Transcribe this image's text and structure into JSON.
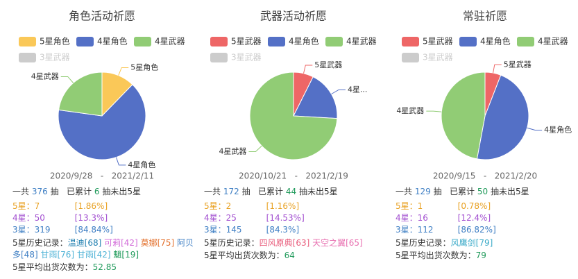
{
  "chart_data": [
    {
      "type": "pie",
      "title": "角色活动祈愿",
      "categories": [
        "5星角色",
        "4星角色",
        "4星武器",
        "3星武器"
      ],
      "values": [
        7,
        37,
        13,
        null
      ],
      "colors": [
        "#fac858",
        "#5470c6",
        "#91cc75",
        "#cccccc"
      ],
      "labels": [
        "5星角色",
        "4星角色",
        "4星武器",
        null
      ]
    },
    {
      "type": "pie",
      "title": "武器活动祈愿",
      "categories": [
        "5星武器",
        "4星角色",
        "4星武器",
        "3星武器"
      ],
      "values": [
        2,
        5,
        20,
        null
      ],
      "colors": [
        "#ee6666",
        "#5470c6",
        "#91cc75",
        "#cccccc"
      ],
      "labels": [
        "5星武器",
        "4星...",
        "4星武器",
        null
      ]
    },
    {
      "type": "pie",
      "title": "常驻祈愿",
      "categories": [
        "5星武器",
        "4星角色",
        "4星武器",
        "3星武器"
      ],
      "values": [
        1,
        8,
        8,
        null
      ],
      "colors": [
        "#ee6666",
        "#5470c6",
        "#91cc75",
        "#cccccc"
      ],
      "labels": [
        "5星武器",
        "4星角色",
        "4星武器",
        null
      ]
    }
  ],
  "panels": [
    {
      "date_range": "2020/9/28   -   2021/2/11",
      "summary": {
        "prefix": "一共",
        "total": 376,
        "mid": "抽   已累计",
        "since": 6,
        "suffix": "抽未出5星"
      },
      "rarity": [
        {
          "label": "5星：",
          "count": 7,
          "percent": "[1.86%]",
          "color": "#e8a020"
        },
        {
          "label": "4星：",
          "count": 50,
          "percent": "[13.3%]",
          "color": "#a24fd0"
        },
        {
          "label": "3星：",
          "count": 319,
          "percent": "[84.84%]",
          "color": "#3f7fc4"
        }
      ],
      "history_label": "5星历史记录：",
      "history": [
        {
          "text": "温迪[68]",
          "color": "#1f7fb0"
        },
        {
          "text": "可莉[42]",
          "color": "#d26ad8"
        },
        {
          "text": "莫娜[75]",
          "color": "#e3702c"
        },
        {
          "text": "阿贝多[48]",
          "color": "#3f7fc4"
        },
        {
          "text": "甘雨[76]",
          "color": "#4fb3d6"
        },
        {
          "text": "甘雨[42]",
          "color": "#4fb3d6"
        },
        {
          "text": "魈[19]",
          "color": "#1f9a5a"
        }
      ],
      "average_label": "5星平均出货次数为：",
      "average": 52.85
    },
    {
      "date_range": "2020/10/21   -   2021/2/19",
      "summary": {
        "prefix": "一共",
        "total": 172,
        "mid": "抽   已累计",
        "since": 44,
        "suffix": "抽未出5星"
      },
      "rarity": [
        {
          "label": "5星：",
          "count": 2,
          "percent": "[1.16%]",
          "color": "#e8a020"
        },
        {
          "label": "4星：",
          "count": 25,
          "percent": "[14.53%]",
          "color": "#a24fd0"
        },
        {
          "label": "3星：",
          "count": 145,
          "percent": "[84.3%]",
          "color": "#3f7fc4"
        }
      ],
      "history_label": "5星历史记录：",
      "history": [
        {
          "text": "四风原典[63]",
          "color": "#e85a7a"
        },
        {
          "text": "天空之翼[65]",
          "color": "#e870b0"
        }
      ],
      "average_label": "5星平均出货次数为：",
      "average": 64
    },
    {
      "date_range": "2020/9/15   -   2021/2/20",
      "summary": {
        "prefix": "一共",
        "total": 129,
        "mid": "抽   已累计",
        "since": 50,
        "suffix": "抽未出5星"
      },
      "rarity": [
        {
          "label": "5星：",
          "count": 1,
          "percent": "[0.78%]",
          "color": "#e8a020"
        },
        {
          "label": "4星：",
          "count": 16,
          "percent": "[12.4%]",
          "color": "#a24fd0"
        },
        {
          "label": "3星：",
          "count": 112,
          "percent": "[86.82%]",
          "color": "#3f7fc4"
        }
      ],
      "history_label": "5星历史记录：",
      "history": [
        {
          "text": "风鹰剑[79]",
          "color": "#3aaac8"
        }
      ],
      "average_label": "5星平均出货次数为：",
      "average": 79
    }
  ]
}
